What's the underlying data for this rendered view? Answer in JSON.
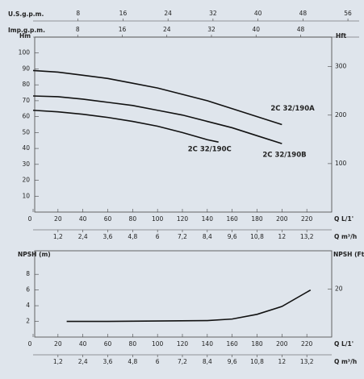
{
  "chart_data": [
    {
      "type": "line",
      "top_axes": [
        {
          "label": "U.S.g.p.m.",
          "lim": [
            0,
            58
          ],
          "ticks": [
            8,
            16,
            24,
            32,
            40,
            48,
            56
          ]
        },
        {
          "label": "Imp.g.p.m.",
          "lim": [
            0,
            58.5
          ],
          "ticks": [
            8,
            16,
            24,
            32,
            40,
            48
          ]
        }
      ],
      "ylabel": "Hm",
      "y2label": "Hft",
      "xlabel": "Q L/1'",
      "x2label": "Q m³/h",
      "xlim": [
        0,
        240
      ],
      "xticks": [
        0,
        20,
        40,
        60,
        80,
        100,
        120,
        140,
        160,
        180,
        200,
        220
      ],
      "x2lim": [
        0,
        14.4
      ],
      "x2ticks": [
        {
          "value": 1.2,
          "label": "1,2"
        },
        {
          "value": 2.4,
          "label": "2,4"
        },
        {
          "value": 3.6,
          "label": "3,6"
        },
        {
          "value": 4.8,
          "label": "4,8"
        },
        6,
        {
          "value": 7.2,
          "label": "7,2"
        },
        {
          "value": 8.4,
          "label": "8,4"
        },
        {
          "value": 9.6,
          "label": "9,6"
        },
        {
          "value": 10.8,
          "label": "10,8"
        },
        12,
        {
          "value": 13.2,
          "label": "13,2"
        }
      ],
      "ylim": [
        0,
        110
      ],
      "yticks": [
        10,
        20,
        30,
        40,
        50,
        60,
        70,
        80,
        90,
        100
      ],
      "y2lim": [
        0,
        361
      ],
      "y2ticks": [
        100,
        200,
        300
      ],
      "grid": false,
      "series": [
        {
          "name": "2C 32/190A",
          "color": "#111111",
          "x": [
            0,
            20,
            40,
            60,
            80,
            100,
            120,
            140,
            160,
            180,
            200
          ],
          "values": [
            89,
            88,
            86,
            84,
            81,
            78,
            74,
            70,
            65,
            60,
            55
          ]
        },
        {
          "name": "2C 32/190B",
          "color": "#111111",
          "x": [
            0,
            20,
            40,
            60,
            80,
            100,
            120,
            140,
            160,
            180,
            200
          ],
          "values": [
            73,
            72.5,
            71,
            69,
            67,
            64,
            61,
            57,
            53,
            48,
            43
          ]
        },
        {
          "name": "2C 32/190C",
          "color": "#111111",
          "x": [
            0,
            20,
            40,
            60,
            80,
            100,
            120,
            140,
            149
          ],
          "values": [
            64,
            63,
            61.5,
            59.5,
            57,
            54,
            50,
            45.5,
            44
          ]
        }
      ]
    },
    {
      "type": "line",
      "ylabel": "NPSH (m)",
      "y2label": "NPSH (Ft)",
      "xlabel": "Q L/1'",
      "x2label": "Q m³/h",
      "xlim": [
        0,
        240
      ],
      "xticks": [
        0,
        20,
        40,
        60,
        80,
        100,
        120,
        140,
        160,
        180,
        200,
        220
      ],
      "x2lim": [
        0,
        14.4
      ],
      "x2ticks": [
        {
          "value": 1.2,
          "label": "1,2"
        },
        {
          "value": 2.4,
          "label": "2,4"
        },
        {
          "value": 3.6,
          "label": "3,6"
        },
        {
          "value": 4.8,
          "label": "4,8"
        },
        6,
        {
          "value": 7.2,
          "label": "7,2"
        },
        {
          "value": 8.4,
          "label": "8,4"
        },
        {
          "value": 9.6,
          "label": "9,6"
        },
        {
          "value": 10.8,
          "label": "10,8"
        },
        12,
        {
          "value": 13.2,
          "label": "13,2"
        }
      ],
      "ylim": [
        0,
        11
      ],
      "yticks": [
        2,
        4,
        6,
        8
      ],
      "y2lim": [
        0,
        36.1
      ],
      "y2ticks": [
        20
      ],
      "grid": false,
      "series": [
        {
          "color": "#111111",
          "x": [
            27,
            60,
            100,
            140,
            160,
            180,
            200,
            223
          ],
          "values": [
            2,
            2,
            2.05,
            2.1,
            2.3,
            2.9,
            3.9,
            6
          ]
        }
      ]
    }
  ]
}
